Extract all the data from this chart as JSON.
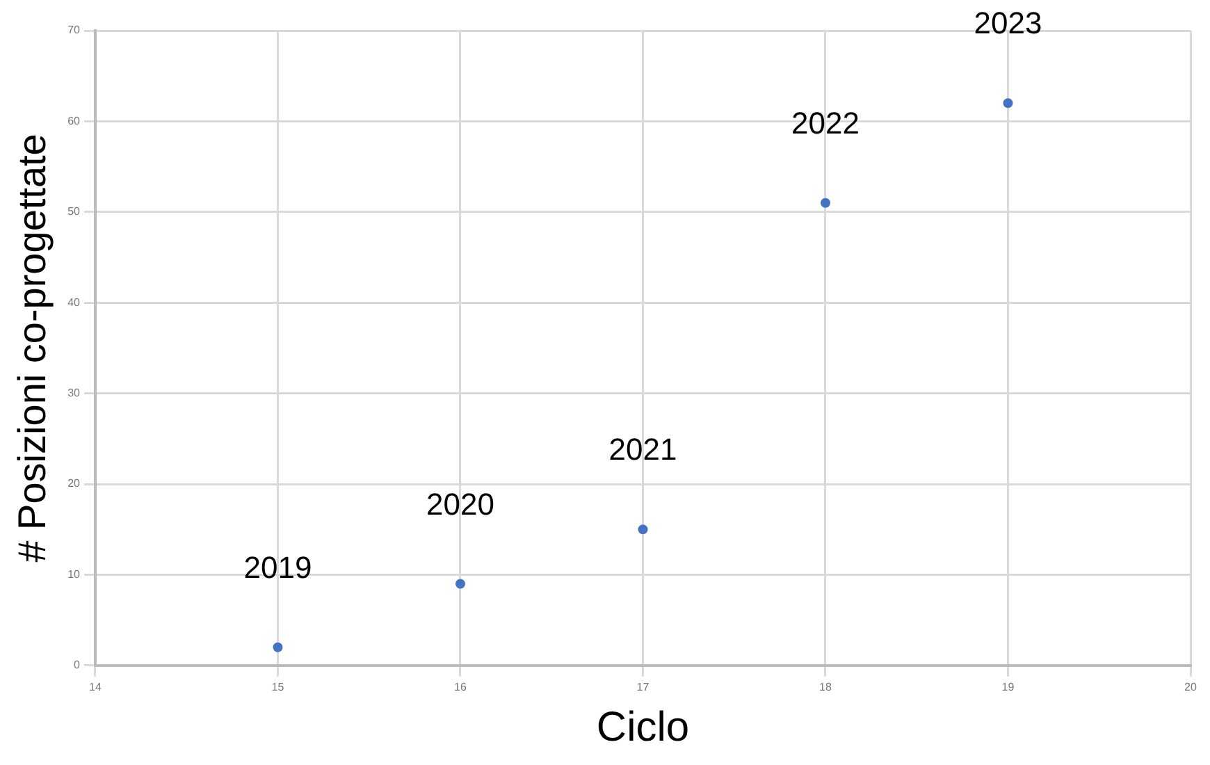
{
  "chart_data": {
    "type": "scatter",
    "xlabel": "Ciclo",
    "ylabel": "# Posizioni co-progettate",
    "x": [
      15,
      16,
      17,
      18,
      19
    ],
    "values": [
      2,
      9,
      15,
      51,
      62
    ],
    "color": "#4472c4",
    "xlim": [
      14,
      20
    ],
    "xticks": [
      14,
      15,
      16,
      17,
      18,
      19,
      20
    ],
    "ylim": [
      0,
      70
    ],
    "yticks": [
      0,
      10,
      20,
      30,
      40,
      50,
      60,
      70
    ],
    "grid": true,
    "marker": "circle",
    "annotations": [
      {
        "text": "2019",
        "x": 15,
        "y": 2
      },
      {
        "text": "2020",
        "x": 16,
        "y": 9
      },
      {
        "text": "2021",
        "x": 17,
        "y": 15
      },
      {
        "text": "2022",
        "x": 18,
        "y": 51
      },
      {
        "text": "2023",
        "x": 19,
        "y": 62
      }
    ]
  }
}
